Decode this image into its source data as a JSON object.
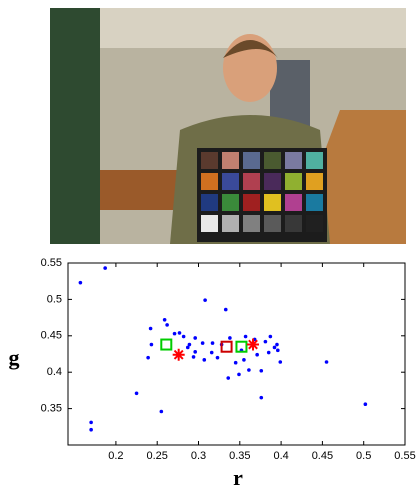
{
  "chart_data": {
    "type": "scatter",
    "x_label": "r",
    "y_label": "g",
    "xlim": [
      0.142,
      0.55
    ],
    "ylim": [
      0.3,
      0.55
    ],
    "xticks": [
      0.2,
      0.25,
      0.3,
      0.35,
      0.4,
      0.45,
      0.5,
      0.55
    ],
    "yticks": [
      0.35,
      0.4,
      0.45,
      0.5,
      0.55
    ],
    "grid": false,
    "series": [
      {
        "color": "#0000ff",
        "marker": "dot",
        "x": [
          0.157,
          0.187,
          0.17,
          0.17,
          0.225,
          0.255,
          0.242,
          0.259,
          0.262,
          0.243,
          0.239,
          0.271,
          0.277,
          0.282,
          0.289,
          0.308,
          0.296,
          0.305,
          0.296,
          0.307,
          0.316,
          0.323,
          0.333,
          0.328,
          0.338,
          0.345,
          0.336,
          0.349,
          0.357,
          0.368,
          0.371,
          0.376,
          0.376,
          0.381,
          0.387,
          0.392,
          0.396,
          0.395,
          0.385,
          0.361,
          0.355,
          0.317,
          0.455,
          0.502,
          0.287,
          0.294,
          0.399,
          0.352
        ],
        "values": [
          0.523,
          0.543,
          0.331,
          0.321,
          0.371,
          0.346,
          0.46,
          0.472,
          0.465,
          0.438,
          0.42,
          0.453,
          0.454,
          0.449,
          0.438,
          0.499,
          0.447,
          0.44,
          0.428,
          0.417,
          0.427,
          0.42,
          0.486,
          0.438,
          0.447,
          0.413,
          0.392,
          0.397,
          0.449,
          0.445,
          0.424,
          0.402,
          0.365,
          0.442,
          0.449,
          0.434,
          0.43,
          0.438,
          0.427,
          0.403,
          0.417,
          0.44,
          0.414,
          0.356,
          0.434,
          0.421,
          0.414,
          0.43
        ]
      },
      {
        "color": "#00cc00",
        "marker": "square",
        "x": [
          0.261,
          0.352
        ],
        "values": [
          0.438,
          0.435
        ]
      },
      {
        "color": "#cc0000",
        "marker": "square",
        "x": [
          0.334
        ],
        "values": [
          0.435
        ]
      },
      {
        "color": "#ff0000",
        "marker": "star",
        "x": [
          0.276,
          0.366
        ],
        "values": [
          0.424,
          0.438
        ]
      }
    ]
  }
}
